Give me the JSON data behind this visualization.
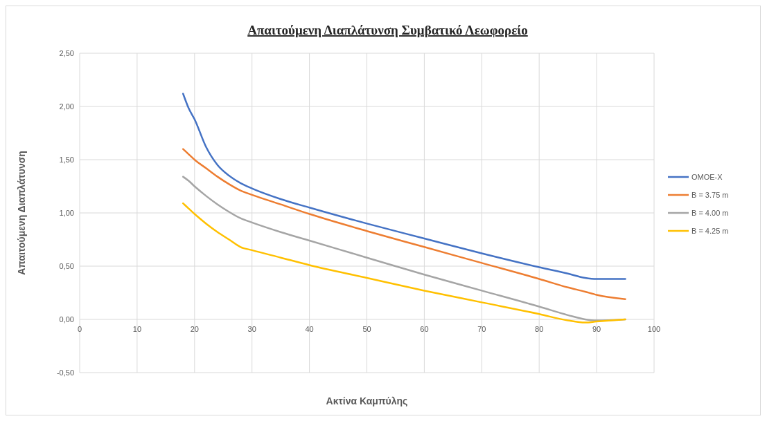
{
  "chart_data": {
    "type": "line",
    "title": "Απαιτούμενη Διαπλάτυνση Συμβατικό Λεωφορείο",
    "xlabel": "Ακτίνα Καμπύλης",
    "ylabel": "Απαιτούμενη Διαπλάτυνση",
    "x": [
      18,
      19,
      20,
      22,
      24,
      26,
      28,
      30,
      35,
      40,
      50,
      60,
      70,
      80,
      85,
      88,
      90,
      95
    ],
    "series": [
      {
        "name": "ΟΜΟΕ-Χ",
        "color": "#4472c4",
        "values": [
          2.12,
          1.98,
          1.88,
          1.62,
          1.45,
          1.35,
          1.28,
          1.23,
          1.13,
          1.05,
          0.9,
          0.76,
          0.62,
          0.49,
          0.43,
          0.39,
          0.38,
          0.38
        ]
      },
      {
        "name": "B = 3.75 m",
        "color": "#ed7d31",
        "values": [
          1.6,
          1.55,
          1.5,
          1.42,
          1.34,
          1.27,
          1.21,
          1.17,
          1.08,
          0.99,
          0.83,
          0.68,
          0.53,
          0.38,
          0.3,
          0.26,
          0.23,
          0.19
        ]
      },
      {
        "name": "B = 4.00 m",
        "color": "#a5a5a5",
        "values": [
          1.34,
          1.3,
          1.25,
          1.16,
          1.08,
          1.01,
          0.95,
          0.91,
          0.82,
          0.74,
          0.58,
          0.42,
          0.27,
          0.12,
          0.04,
          0,
          -0.01,
          0
        ]
      },
      {
        "name": "B = 4.25 m",
        "color": "#ffc000",
        "values": [
          1.09,
          1.04,
          0.99,
          0.9,
          0.82,
          0.75,
          0.68,
          0.65,
          0.58,
          0.51,
          0.39,
          0.27,
          0.16,
          0.05,
          -0.01,
          -0.03,
          -0.02,
          0
        ]
      }
    ],
    "xlim": [
      0,
      100
    ],
    "xticks": [
      0,
      10,
      20,
      30,
      40,
      50,
      60,
      70,
      80,
      90,
      100
    ],
    "ylim": [
      -0.5,
      2.5
    ],
    "yticks": [
      {
        "value": -0.5,
        "label": "-0,50"
      },
      {
        "value": 0,
        "label": "0,00"
      },
      {
        "value": 0.5,
        "label": "0,50"
      },
      {
        "value": 1,
        "label": "1,00"
      },
      {
        "value": 1.5,
        "label": "1,50"
      },
      {
        "value": 2,
        "label": "2,00"
      },
      {
        "value": 2.5,
        "label": "2,50"
      }
    ],
    "grid": true,
    "legend": "right",
    "marker": "none",
    "line_style": "solid"
  }
}
